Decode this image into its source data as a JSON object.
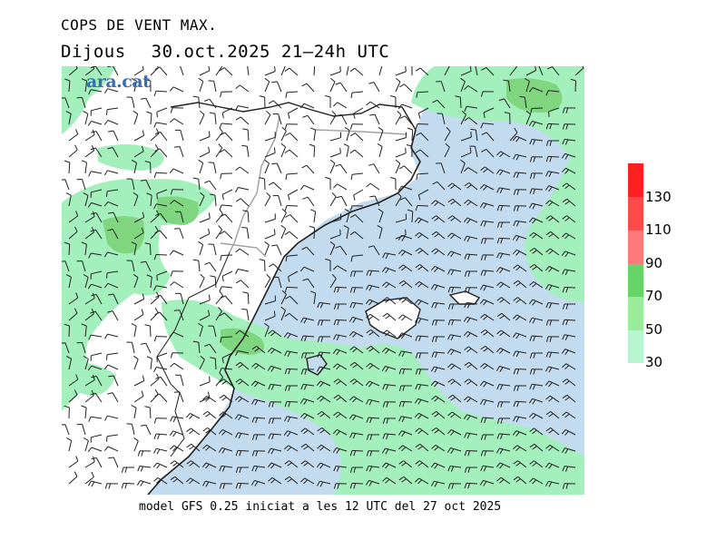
{
  "header": {
    "title": "COPS DE VENT MAX.",
    "day": "Dijous",
    "datetime": "30.oct.2025 21–24h UTC"
  },
  "logo": "ara.cat",
  "legend": {
    "labels": [
      "130",
      "110",
      "90",
      "70",
      "50",
      "30"
    ],
    "colors": [
      "#ff2020",
      "#ff4a4a",
      "#ff7a7a",
      "#66d466",
      "#99ec99",
      "#b6f5cf"
    ]
  },
  "map_colors": {
    "land_weak": "#ffffff",
    "sea": "#c3dbee",
    "band_30_50": "#a3f0bc",
    "band_50_70": "#7fd67f",
    "coast": "#202020",
    "border": "#a0a0a0"
  },
  "footer": "model GFS 0.25 iniciat a les 12 UTC del 27 oct 2025"
}
